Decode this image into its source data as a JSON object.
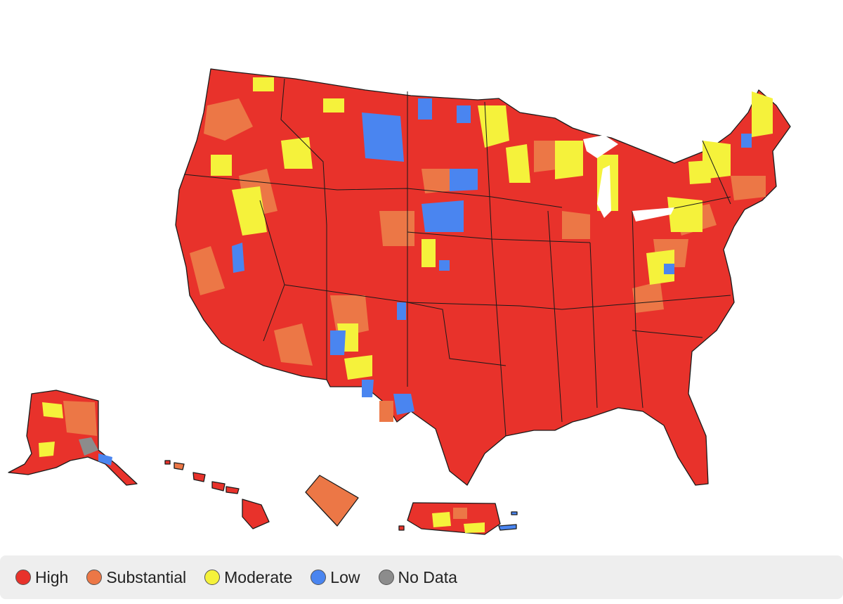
{
  "legend": {
    "items": [
      {
        "label": "High",
        "color": "#e8322b",
        "icon": "legend-high-swatch"
      },
      {
        "label": "Substantial",
        "color": "#ec7746",
        "icon": "legend-substantial-swatch"
      },
      {
        "label": "Moderate",
        "color": "#f5f23b",
        "icon": "legend-moderate-swatch"
      },
      {
        "label": "Low",
        "color": "#4a85f0",
        "icon": "legend-low-swatch"
      },
      {
        "label": "No Data",
        "color": "#8c8c8c",
        "icon": "legend-no-data-swatch"
      }
    ]
  },
  "colors": {
    "high": "#e8322b",
    "substantial": "#ec7746",
    "moderate": "#f5f23b",
    "low": "#4a85f0",
    "no_data": "#8c8c8c"
  }
}
